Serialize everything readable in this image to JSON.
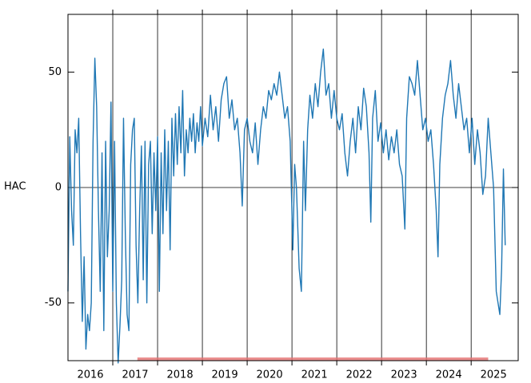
{
  "chart_data": {
    "type": "line",
    "ylabel": "HAC",
    "color": "#1f77b4",
    "xlim": [
      2016.0,
      2026.05
    ],
    "ylim": [
      -75,
      75
    ],
    "yticks": [
      -50,
      0,
      50
    ],
    "xticks": [
      {
        "value": 2016.5,
        "label": "2016"
      },
      {
        "value": 2017.5,
        "label": "2017"
      },
      {
        "value": 2018.5,
        "label": "2018"
      },
      {
        "value": 2019.5,
        "label": "2019"
      },
      {
        "value": 2020.5,
        "label": "2020"
      },
      {
        "value": 2021.5,
        "label": "2021"
      },
      {
        "value": 2022.5,
        "label": "2022"
      },
      {
        "value": 2023.5,
        "label": "2023"
      },
      {
        "value": 2024.5,
        "label": "2024"
      },
      {
        "value": 2025.5,
        "label": "2025"
      }
    ],
    "xgrid": [
      2017,
      2018,
      2019,
      2020,
      2021,
      2022,
      2023,
      2024,
      2025
    ],
    "zero_line": true,
    "span": {
      "start": 2017.55,
      "end": 2025.38,
      "color": "#e57373"
    },
    "x": [
      2016.0,
      2016.04,
      2016.08,
      2016.12,
      2016.16,
      2016.2,
      2016.24,
      2016.28,
      2016.32,
      2016.36,
      2016.4,
      2016.44,
      2016.48,
      2016.52,
      2016.56,
      2016.6,
      2016.64,
      2016.68,
      2016.72,
      2016.76,
      2016.8,
      2016.84,
      2016.88,
      2016.92,
      2016.96,
      2017.0,
      2017.04,
      2017.08,
      2017.12,
      2017.16,
      2017.2,
      2017.24,
      2017.28,
      2017.32,
      2017.36,
      2017.4,
      2017.44,
      2017.48,
      2017.52,
      2017.56,
      2017.6,
      2017.64,
      2017.68,
      2017.72,
      2017.76,
      2017.8,
      2017.84,
      2017.88,
      2017.92,
      2017.96,
      2018.0,
      2018.04,
      2018.08,
      2018.12,
      2018.16,
      2018.2,
      2018.24,
      2018.28,
      2018.32,
      2018.36,
      2018.4,
      2018.44,
      2018.48,
      2018.52,
      2018.56,
      2018.6,
      2018.64,
      2018.68,
      2018.72,
      2018.76,
      2018.8,
      2018.84,
      2018.88,
      2018.92,
      2018.96,
      2019.0,
      2019.06,
      2019.12,
      2019.18,
      2019.24,
      2019.3,
      2019.36,
      2019.42,
      2019.48,
      2019.54,
      2019.6,
      2019.66,
      2019.72,
      2019.78,
      2019.84,
      2019.89,
      2019.94,
      2020.0,
      2020.06,
      2020.12,
      2020.18,
      2020.24,
      2020.3,
      2020.36,
      2020.42,
      2020.48,
      2020.54,
      2020.6,
      2020.66,
      2020.72,
      2020.78,
      2020.84,
      2020.9,
      2020.96,
      2021.02,
      2021.06,
      2021.1,
      2021.16,
      2021.21,
      2021.26,
      2021.3,
      2021.35,
      2021.4,
      2021.46,
      2021.52,
      2021.58,
      2021.64,
      2021.7,
      2021.76,
      2021.82,
      2021.88,
      2021.94,
      2022.0,
      2022.06,
      2022.12,
      2022.18,
      2022.24,
      2022.3,
      2022.36,
      2022.42,
      2022.48,
      2022.54,
      2022.6,
      2022.66,
      2022.72,
      2022.76,
      2022.8,
      2022.86,
      2022.92,
      2022.98,
      2023.04,
      2023.1,
      2023.16,
      2023.22,
      2023.28,
      2023.34,
      2023.4,
      2023.46,
      2023.52,
      2023.56,
      2023.62,
      2023.68,
      2023.74,
      2023.8,
      2023.86,
      2023.92,
      2023.98,
      2024.04,
      2024.1,
      2024.16,
      2024.22,
      2024.26,
      2024.3,
      2024.36,
      2024.42,
      2024.48,
      2024.54,
      2024.6,
      2024.66,
      2024.72,
      2024.78,
      2024.84,
      2024.9,
      2024.96,
      2025.02,
      2025.08,
      2025.14,
      2025.2,
      2025.26,
      2025.32,
      2025.38,
      2025.44,
      2025.5,
      2025.56,
      2025.6,
      2025.64,
      2025.68,
      2025.72,
      2025.76
    ],
    "values": [
      -45,
      22,
      -10,
      -25,
      25,
      15,
      30,
      -20,
      -58,
      -30,
      -70,
      -55,
      -62,
      -50,
      20,
      56,
      35,
      -10,
      -45,
      15,
      -62,
      20,
      -30,
      -10,
      37,
      -45,
      20,
      -50,
      -76,
      -60,
      -40,
      30,
      -20,
      -55,
      -62,
      10,
      25,
      30,
      -25,
      -50,
      -10,
      18,
      -40,
      20,
      -50,
      10,
      20,
      -20,
      15,
      -10,
      22,
      -45,
      15,
      -20,
      25,
      -10,
      20,
      -27,
      30,
      5,
      32,
      10,
      35,
      15,
      42,
      5,
      25,
      15,
      30,
      20,
      32,
      15,
      28,
      20,
      35,
      18,
      30,
      22,
      40,
      25,
      35,
      20,
      38,
      45,
      48,
      30,
      38,
      25,
      30,
      15,
      -8,
      25,
      30,
      20,
      15,
      28,
      10,
      25,
      35,
      30,
      42,
      38,
      45,
      40,
      50,
      40,
      30,
      35,
      20,
      -27,
      10,
      0,
      -35,
      -45,
      20,
      -10,
      25,
      40,
      30,
      45,
      35,
      50,
      60,
      40,
      45,
      30,
      42,
      30,
      25,
      32,
      15,
      5,
      20,
      30,
      15,
      35,
      25,
      43,
      35,
      15,
      -15,
      30,
      42,
      20,
      28,
      15,
      25,
      12,
      22,
      15,
      25,
      10,
      5,
      -18,
      30,
      48,
      45,
      40,
      55,
      40,
      25,
      30,
      20,
      25,
      10,
      -10,
      -30,
      10,
      30,
      40,
      45,
      55,
      40,
      30,
      45,
      35,
      25,
      30,
      15,
      30,
      10,
      25,
      15,
      -3,
      5,
      30,
      15,
      0,
      -45,
      -50,
      -55,
      -35,
      8,
      -25
    ]
  }
}
